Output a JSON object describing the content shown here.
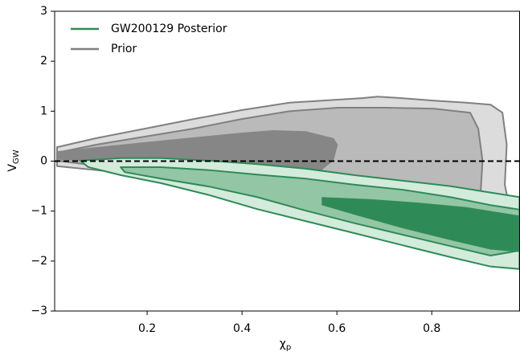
{
  "chart_data": {
    "type": "contour",
    "xlabel": [
      "χ",
      "p"
    ],
    "ylabel": [
      "V",
      "GW"
    ],
    "xlim": [
      0.005,
      0.986
    ],
    "ylim": [
      -3,
      3
    ],
    "xticks": [
      0.2,
      0.4,
      0.6,
      0.8
    ],
    "yticks": [
      3,
      2,
      1,
      0,
      {
        "value": -1,
        "label": "−1"
      },
      {
        "value": -2,
        "label": "−2"
      },
      {
        "value": -3,
        "label": "−3"
      }
    ],
    "hline": 0,
    "legend": "upper left",
    "series": [
      {
        "name": "Prior",
        "color": "#808080",
        "levels": [
          {
            "fill": "#dcdcdc",
            "edge": true,
            "x": [
              0.01,
              0.093,
              0.195,
              0.297,
              0.398,
              0.5,
              0.568,
              0.653,
              0.686,
              0.737,
              0.805,
              0.873,
              0.924,
              0.949,
              0.958,
              0.954,
              0.961,
              0.924,
              0.89,
              0.856,
              0.805,
              0.737,
              0.669,
              0.619,
              0.534,
              0.432,
              0.314,
              0.195,
              0.093,
              0.01
            ],
            "y": [
              0.28,
              0.46,
              0.65,
              0.84,
              1.02,
              1.17,
              1.21,
              1.26,
              1.29,
              1.26,
              1.21,
              1.17,
              1.13,
              0.97,
              0.33,
              -0.47,
              -0.8,
              -0.99,
              -1.12,
              -1.2,
              -1.2,
              -1.12,
              -1.04,
              -0.88,
              -0.67,
              -0.51,
              -0.39,
              -0.28,
              -0.18,
              -0.1
            ]
          },
          {
            "fill": "#bababa",
            "edge": true,
            "x": [
              0.01,
              0.093,
              0.195,
              0.297,
              0.398,
              0.5,
              0.602,
              0.703,
              0.805,
              0.881,
              0.898,
              0.907,
              0.903,
              0.881,
              0.839,
              0.771,
              0.703,
              0.636,
              0.568,
              0.483,
              0.398,
              0.314,
              0.195,
              0.093,
              0.01
            ],
            "y": [
              0.17,
              0.33,
              0.49,
              0.65,
              0.84,
              1.0,
              1.07,
              1.07,
              1.05,
              0.97,
              0.65,
              0.01,
              -0.64,
              -0.8,
              -0.99,
              -1.12,
              -1.04,
              -0.92,
              -0.72,
              -0.51,
              -0.39,
              -0.31,
              -0.18,
              -0.09,
              0.01
            ]
          },
          {
            "fill": "#868686",
            "edge": false,
            "x": [
              0.01,
              0.144,
              0.28,
              0.398,
              0.466,
              0.534,
              0.593,
              0.602,
              0.593,
              0.568,
              0.5,
              0.398,
              0.28,
              0.144,
              0.01
            ],
            "y": [
              0.2,
              0.33,
              0.46,
              0.57,
              0.62,
              0.6,
              0.46,
              0.33,
              0.01,
              -0.18,
              -0.23,
              -0.2,
              -0.12,
              -0.04,
              0.03
            ]
          }
        ]
      },
      {
        "name": "GW200129 Posterior",
        "color": "#2e8b57",
        "levels": [
          {
            "fill": "#d3ebdb",
            "edge": true,
            "x": [
              0.059,
              0.144,
              0.229,
              0.331,
              0.432,
              0.534,
              0.636,
              0.737,
              0.839,
              0.924,
              0.985,
              0.985,
              0.924,
              0.839,
              0.737,
              0.636,
              0.534,
              0.432,
              0.331,
              0.229,
              0.144,
              0.076
            ],
            "y": [
              0.01,
              0.06,
              0.06,
              0.01,
              -0.06,
              -0.15,
              -0.28,
              -0.39,
              -0.5,
              -0.63,
              -0.72,
              -2.16,
              -2.11,
              -1.92,
              -1.68,
              -1.44,
              -1.2,
              -0.96,
              -0.68,
              -0.44,
              -0.28,
              -0.12
            ]
          },
          {
            "fill": "#93c6a5",
            "edge": true,
            "x": [
              0.144,
              0.229,
              0.331,
              0.432,
              0.534,
              0.636,
              0.737,
              0.839,
              0.924,
              0.985,
              0.985,
              0.924,
              0.839,
              0.737,
              0.636,
              0.534,
              0.432,
              0.331,
              0.229,
              0.153
            ],
            "y": [
              -0.12,
              -0.12,
              -0.18,
              -0.27,
              -0.35,
              -0.47,
              -0.57,
              -0.72,
              -0.88,
              -0.97,
              -1.79,
              -1.89,
              -1.7,
              -1.47,
              -1.24,
              -0.99,
              -0.72,
              -0.51,
              -0.35,
              -0.22
            ]
          },
          {
            "fill": "#2e8b57",
            "edge": false,
            "x": [
              0.568,
              0.669,
              0.771,
              0.873,
              0.985,
              0.985,
              0.924,
              0.839,
              0.737,
              0.636,
              0.568
            ],
            "y": [
              -0.72,
              -0.76,
              -0.83,
              -0.92,
              -1.09,
              -1.82,
              -1.77,
              -1.58,
              -1.34,
              -1.07,
              -0.88
            ]
          }
        ]
      }
    ]
  }
}
